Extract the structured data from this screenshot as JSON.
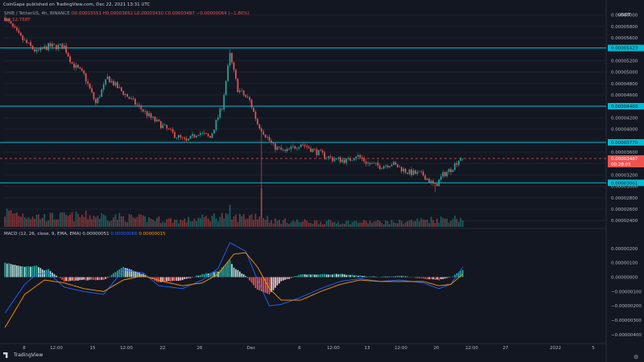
{
  "header": {
    "published": "CoinGape published on TradingView.com, Dec 22, 2021 13:31 UTC",
    "symbol": "SHIB / TetherUS, 4h, BINANCE",
    "ohlc": "O0.00003551 H0.00003652 L0.00003430 C0.00003487 −0.00000064 (−1.80%)",
    "volume": "Vol 12.758T"
  },
  "macd": {
    "label": "MACD (12, 26, close, 9, EMA, EMA)",
    "histogram": "0.00000051",
    "macd_value": "0.00000066",
    "signal_value": "0.00000015"
  },
  "axis": {
    "currency": "USDT"
  },
  "footer": {
    "logo_text": "TradingView"
  },
  "colors": {
    "background": "#131722",
    "up": "#26a69a",
    "down": "#ef5350",
    "level": "#00bcd4",
    "macd": "#2962ff",
    "signal": "#ff9800"
  },
  "chart_data": [
    {
      "type": "candlestick",
      "title": "SHIB / TetherUS, 4h, BINANCE",
      "y_unit": "USDT",
      "ylim": [
        2.29e-05,
        6.15e-05
      ],
      "y_ticks": [
        "0.00006000",
        "0.00005800",
        "0.00005600",
        "0.00005400",
        "0.00005200",
        "0.00005000",
        "0.00004800",
        "0.00004600",
        "0.00004400",
        "0.00004200",
        "0.00004000",
        "0.00003800",
        "0.00003600",
        "0.00003400",
        "0.00003200",
        "0.00003000",
        "0.00002800",
        "0.00002600",
        "0.00002400"
      ],
      "x_ticks": [
        "8",
        "12:00",
        "15",
        "12:00",
        "22",
        "26",
        "Dec",
        "6",
        "12:00",
        "13",
        "12:00",
        "20",
        "12:00",
        "27",
        "2022",
        "5"
      ],
      "level_labels": [
        "0.00005423",
        "0.00004403",
        "0.00003770",
        "0.00003061"
      ],
      "current_price": "0.00003487",
      "countdown": "00:28:05",
      "waypoints": [
        [
          0,
          5.95e-05
        ],
        [
          8,
          5.6e-05
        ],
        [
          16,
          5.35e-05
        ],
        [
          22,
          5.45e-05
        ],
        [
          30,
          5.45e-05
        ],
        [
          34,
          5.15e-05
        ],
        [
          40,
          4.95e-05
        ],
        [
          46,
          4.45e-05
        ],
        [
          52,
          4.9e-05
        ],
        [
          58,
          4.7e-05
        ],
        [
          66,
          4.45e-05
        ],
        [
          74,
          4.2e-05
        ],
        [
          80,
          4.05e-05
        ],
        [
          86,
          3.9e-05
        ],
        [
          92,
          3.78e-05
        ],
        [
          98,
          3.95e-05
        ],
        [
          104,
          3.85e-05
        ],
        [
          110,
          4.4e-05
        ],
        [
          114,
          5.3e-05
        ],
        [
          118,
          4.7e-05
        ],
        [
          124,
          4.5e-05
        ],
        [
          128,
          4.1e-05
        ],
        [
          132,
          3.9e-05
        ],
        [
          136,
          3.7e-05
        ],
        [
          142,
          3.6e-05
        ],
        [
          150,
          3.75e-05
        ],
        [
          158,
          3.6e-05
        ],
        [
          166,
          3.48e-05
        ],
        [
          174,
          3.45e-05
        ],
        [
          178,
          3.55e-05
        ],
        [
          184,
          3.4e-05
        ],
        [
          190,
          3.35e-05
        ],
        [
          196,
          3.4e-05
        ],
        [
          204,
          3.25e-05
        ],
        [
          212,
          3.2e-05
        ],
        [
          218,
          3e-05
        ],
        [
          222,
          3.2e-05
        ],
        [
          226,
          3.3e-05
        ],
        [
          232,
          3.55e-05
        ]
      ],
      "volume_profile": [
        [
          0,
          0.6
        ],
        [
          20,
          0.4
        ],
        [
          45,
          0.45
        ],
        [
          90,
          0.25
        ],
        [
          110,
          0.45
        ],
        [
          114,
          0.35
        ],
        [
          130,
          0.5
        ],
        [
          135,
          0.25
        ],
        [
          160,
          0.2
        ],
        [
          200,
          0.2
        ],
        [
          215,
          0.3
        ],
        [
          232,
          0.35
        ]
      ]
    },
    {
      "type": "line",
      "title": "MACD (12, 26, close, 9, EMA, EMA)",
      "ylim": [
        -4.45e-06,
        3.05e-06
      ],
      "y_ticks": [
        "0.00000200",
        "0.00000100",
        "0.00000000",
        "−0.00000100",
        "−0.00000200",
        "−0.00000300",
        "−0.00000400"
      ],
      "series": [
        {
          "name": "MACD",
          "waypoints": [
            [
              0,
              -2.5e-06
            ],
            [
              10,
              -5e-07
            ],
            [
              16,
              2e-07
            ],
            [
              22,
              3e-07
            ],
            [
              30,
              -7e-07
            ],
            [
              40,
              -1e-06
            ],
            [
              50,
              -1.2e-06
            ],
            [
              60,
              5e-07
            ],
            [
              70,
              3e-07
            ],
            [
              78,
              -6e-07
            ],
            [
              90,
              -8e-07
            ],
            [
              100,
              -2e-07
            ],
            [
              108,
              6e-07
            ],
            [
              114,
              2.4e-06
            ],
            [
              122,
              1.8e-06
            ],
            [
              128,
              -2e-07
            ],
            [
              134,
              -2e-06
            ],
            [
              140,
              -1.9e-06
            ],
            [
              150,
              -1.4e-06
            ],
            [
              160,
              -8e-07
            ],
            [
              170,
              -3e-07
            ],
            [
              180,
              -1e-07
            ],
            [
              190,
              -3e-07
            ],
            [
              200,
              -2e-07
            ],
            [
              212,
              -4e-07
            ],
            [
              220,
              -8e-07
            ],
            [
              226,
              -5e-07
            ],
            [
              232,
              7e-07
            ]
          ]
        },
        {
          "name": "Signal",
          "waypoints": [
            [
              0,
              -3.5e-06
            ],
            [
              10,
              -1.2e-06
            ],
            [
              20,
              -2e-07
            ],
            [
              30,
              -4e-07
            ],
            [
              40,
              -8e-07
            ],
            [
              50,
              -1e-06
            ],
            [
              60,
              -2e-07
            ],
            [
              70,
              1e-07
            ],
            [
              80,
              -3e-07
            ],
            [
              90,
              -6e-07
            ],
            [
              100,
              -4e-07
            ],
            [
              108,
              2e-07
            ],
            [
              116,
              1.6e-06
            ],
            [
              122,
              1.7e-06
            ],
            [
              128,
              7e-07
            ],
            [
              134,
              -8e-07
            ],
            [
              140,
              -1.6e-06
            ],
            [
              150,
              -1.6e-06
            ],
            [
              160,
              -1e-06
            ],
            [
              170,
              -5e-07
            ],
            [
              180,
              -2e-07
            ],
            [
              190,
              -3e-07
            ],
            [
              200,
              -3e-07
            ],
            [
              212,
              -3e-07
            ],
            [
              220,
              -6e-07
            ],
            [
              226,
              -5e-07
            ],
            [
              232,
              2e-07
            ]
          ]
        }
      ]
    }
  ]
}
